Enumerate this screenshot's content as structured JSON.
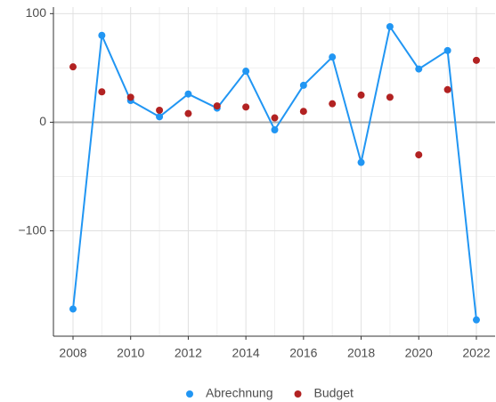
{
  "chart_data": {
    "type": "line",
    "x": [
      2008,
      2009,
      2010,
      2011,
      2012,
      2013,
      2014,
      2015,
      2016,
      2017,
      2018,
      2019,
      2020,
      2021,
      2022
    ],
    "series": [
      {
        "name": "Abrechnung",
        "color": "#2196f3",
        "type": "line",
        "values": [
          -172,
          80,
          20,
          5,
          26,
          13,
          47,
          -7,
          34,
          60,
          -37,
          88,
          49,
          66,
          -182
        ]
      },
      {
        "name": "Budget",
        "color": "#b22222",
        "type": "scatter",
        "values": [
          51,
          28,
          23,
          11,
          8,
          15,
          14,
          4,
          10,
          17,
          25,
          23,
          -30,
          30,
          57
        ]
      }
    ],
    "xlim": [
      2007.32,
      2022.65
    ],
    "xticks": [
      2008,
      2010,
      2012,
      2014,
      2016,
      2018,
      2020,
      2022
    ],
    "ylim": [
      -197,
      106
    ],
    "yticks": [
      {
        "value": -100,
        "label": "−100"
      },
      0,
      100
    ],
    "grid": true,
    "legend": "bottom"
  }
}
